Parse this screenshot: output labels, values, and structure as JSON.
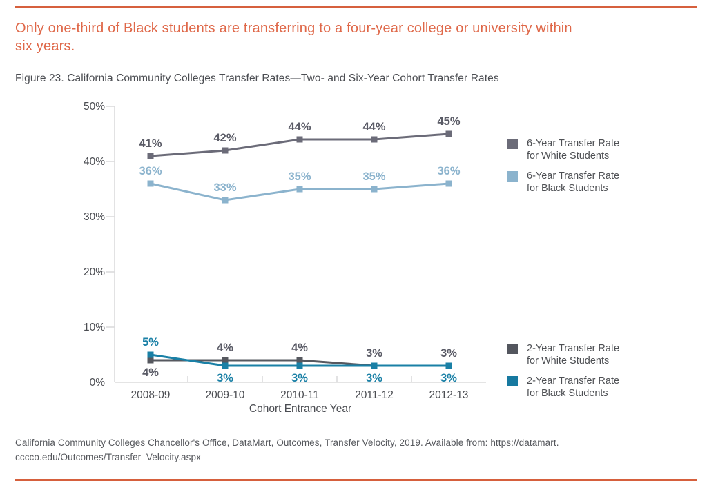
{
  "page": {
    "accent_color": "#D6603D",
    "heading": {
      "full": "Only one-third of Black students are transferring to a four-year college or university within six years.",
      "lines": [
        "Only one-third of Black students are transferring to a four-year college or university within",
        "six years."
      ],
      "color": "#DF6849"
    },
    "figure": {
      "caption": "Figure 23. California Community Colleges Transfer Rates—Two- and Six-Year Cohort Transfer Rates"
    },
    "source": {
      "full": "California Community Colleges Chancellor's Office, DataMart, Outcomes, Transfer Velocity, 2019. Available from: https://datamart.cccco.edu/Outcomes/Transfer_Velocity.aspx",
      "lines": [
        "California Community Colleges Chancellor's Office, DataMart, Outcomes, Transfer Velocity, 2019. Available from: https://datamart.",
        "cccco.edu/Outcomes/Transfer_Velocity.aspx"
      ]
    }
  },
  "chart_data": {
    "type": "line",
    "title": "California Community Colleges Transfer Rates—Two- and Six-Year Cohort Transfer Rates",
    "xlabel": "Cohort Entrance Year",
    "ylabel": "",
    "categories": [
      "2008-09",
      "2009-10",
      "2010-11",
      "2011-12",
      "2012-13"
    ],
    "y_ticks": [
      "0%",
      "10%",
      "20%",
      "30%",
      "40%",
      "50%"
    ],
    "ylim": [
      0,
      50
    ],
    "grid": false,
    "legend_position": "right",
    "marker": "square",
    "series": [
      {
        "name": "6-Year Transfer Rate for White Students",
        "color": "#6B6B78",
        "label_color": "#5A5B66",
        "values": [
          41,
          42,
          44,
          44,
          45
        ],
        "labels": [
          "41%",
          "42%",
          "44%",
          "44%",
          "45%"
        ],
        "label_side": [
          "above",
          "above",
          "above",
          "above",
          "above"
        ]
      },
      {
        "name": "6-Year Transfer Rate for Black Students",
        "color": "#8BB3CD",
        "label_color": "#8BB3CD",
        "values": [
          36,
          33,
          35,
          35,
          36
        ],
        "labels": [
          "36%",
          "33%",
          "35%",
          "35%",
          "36%"
        ],
        "label_side": [
          "above",
          "above",
          "above",
          "above",
          "above"
        ]
      },
      {
        "name": "2-Year Transfer Rate for White Students",
        "color": "#56585F",
        "label_color": "#5A5B66",
        "values": [
          4,
          4,
          4,
          3,
          3
        ],
        "labels": [
          "4%",
          "4%",
          "4%",
          "3%",
          "3%"
        ],
        "label_side": [
          "below",
          "above",
          "above",
          "above",
          "above"
        ]
      },
      {
        "name": "2-Year Transfer Rate for Black Students",
        "color": "#1A80A6",
        "label_color": "#1A80A6",
        "values": [
          5,
          3,
          3,
          3,
          3
        ],
        "labels": [
          "5%",
          "3%",
          "3%",
          "3%",
          "3%"
        ],
        "label_side": [
          "above",
          "below",
          "below",
          "below",
          "below"
        ]
      }
    ]
  },
  "legend_groups": [
    {
      "items": [
        {
          "swatch": "#6B6B78",
          "line1": "6-Year Transfer Rate",
          "line2": "for White Students"
        },
        {
          "swatch": "#8BB3CD",
          "line1": "6-Year Transfer Rate",
          "line2": "for Black Students"
        }
      ]
    },
    {
      "items": [
        {
          "swatch": "#53565E",
          "line1": "2-Year Transfer Rate",
          "line2": "for White Students"
        },
        {
          "swatch": "#1779A0",
          "line1": "2-Year Transfer Rate",
          "line2": "for Black Students"
        }
      ]
    }
  ]
}
